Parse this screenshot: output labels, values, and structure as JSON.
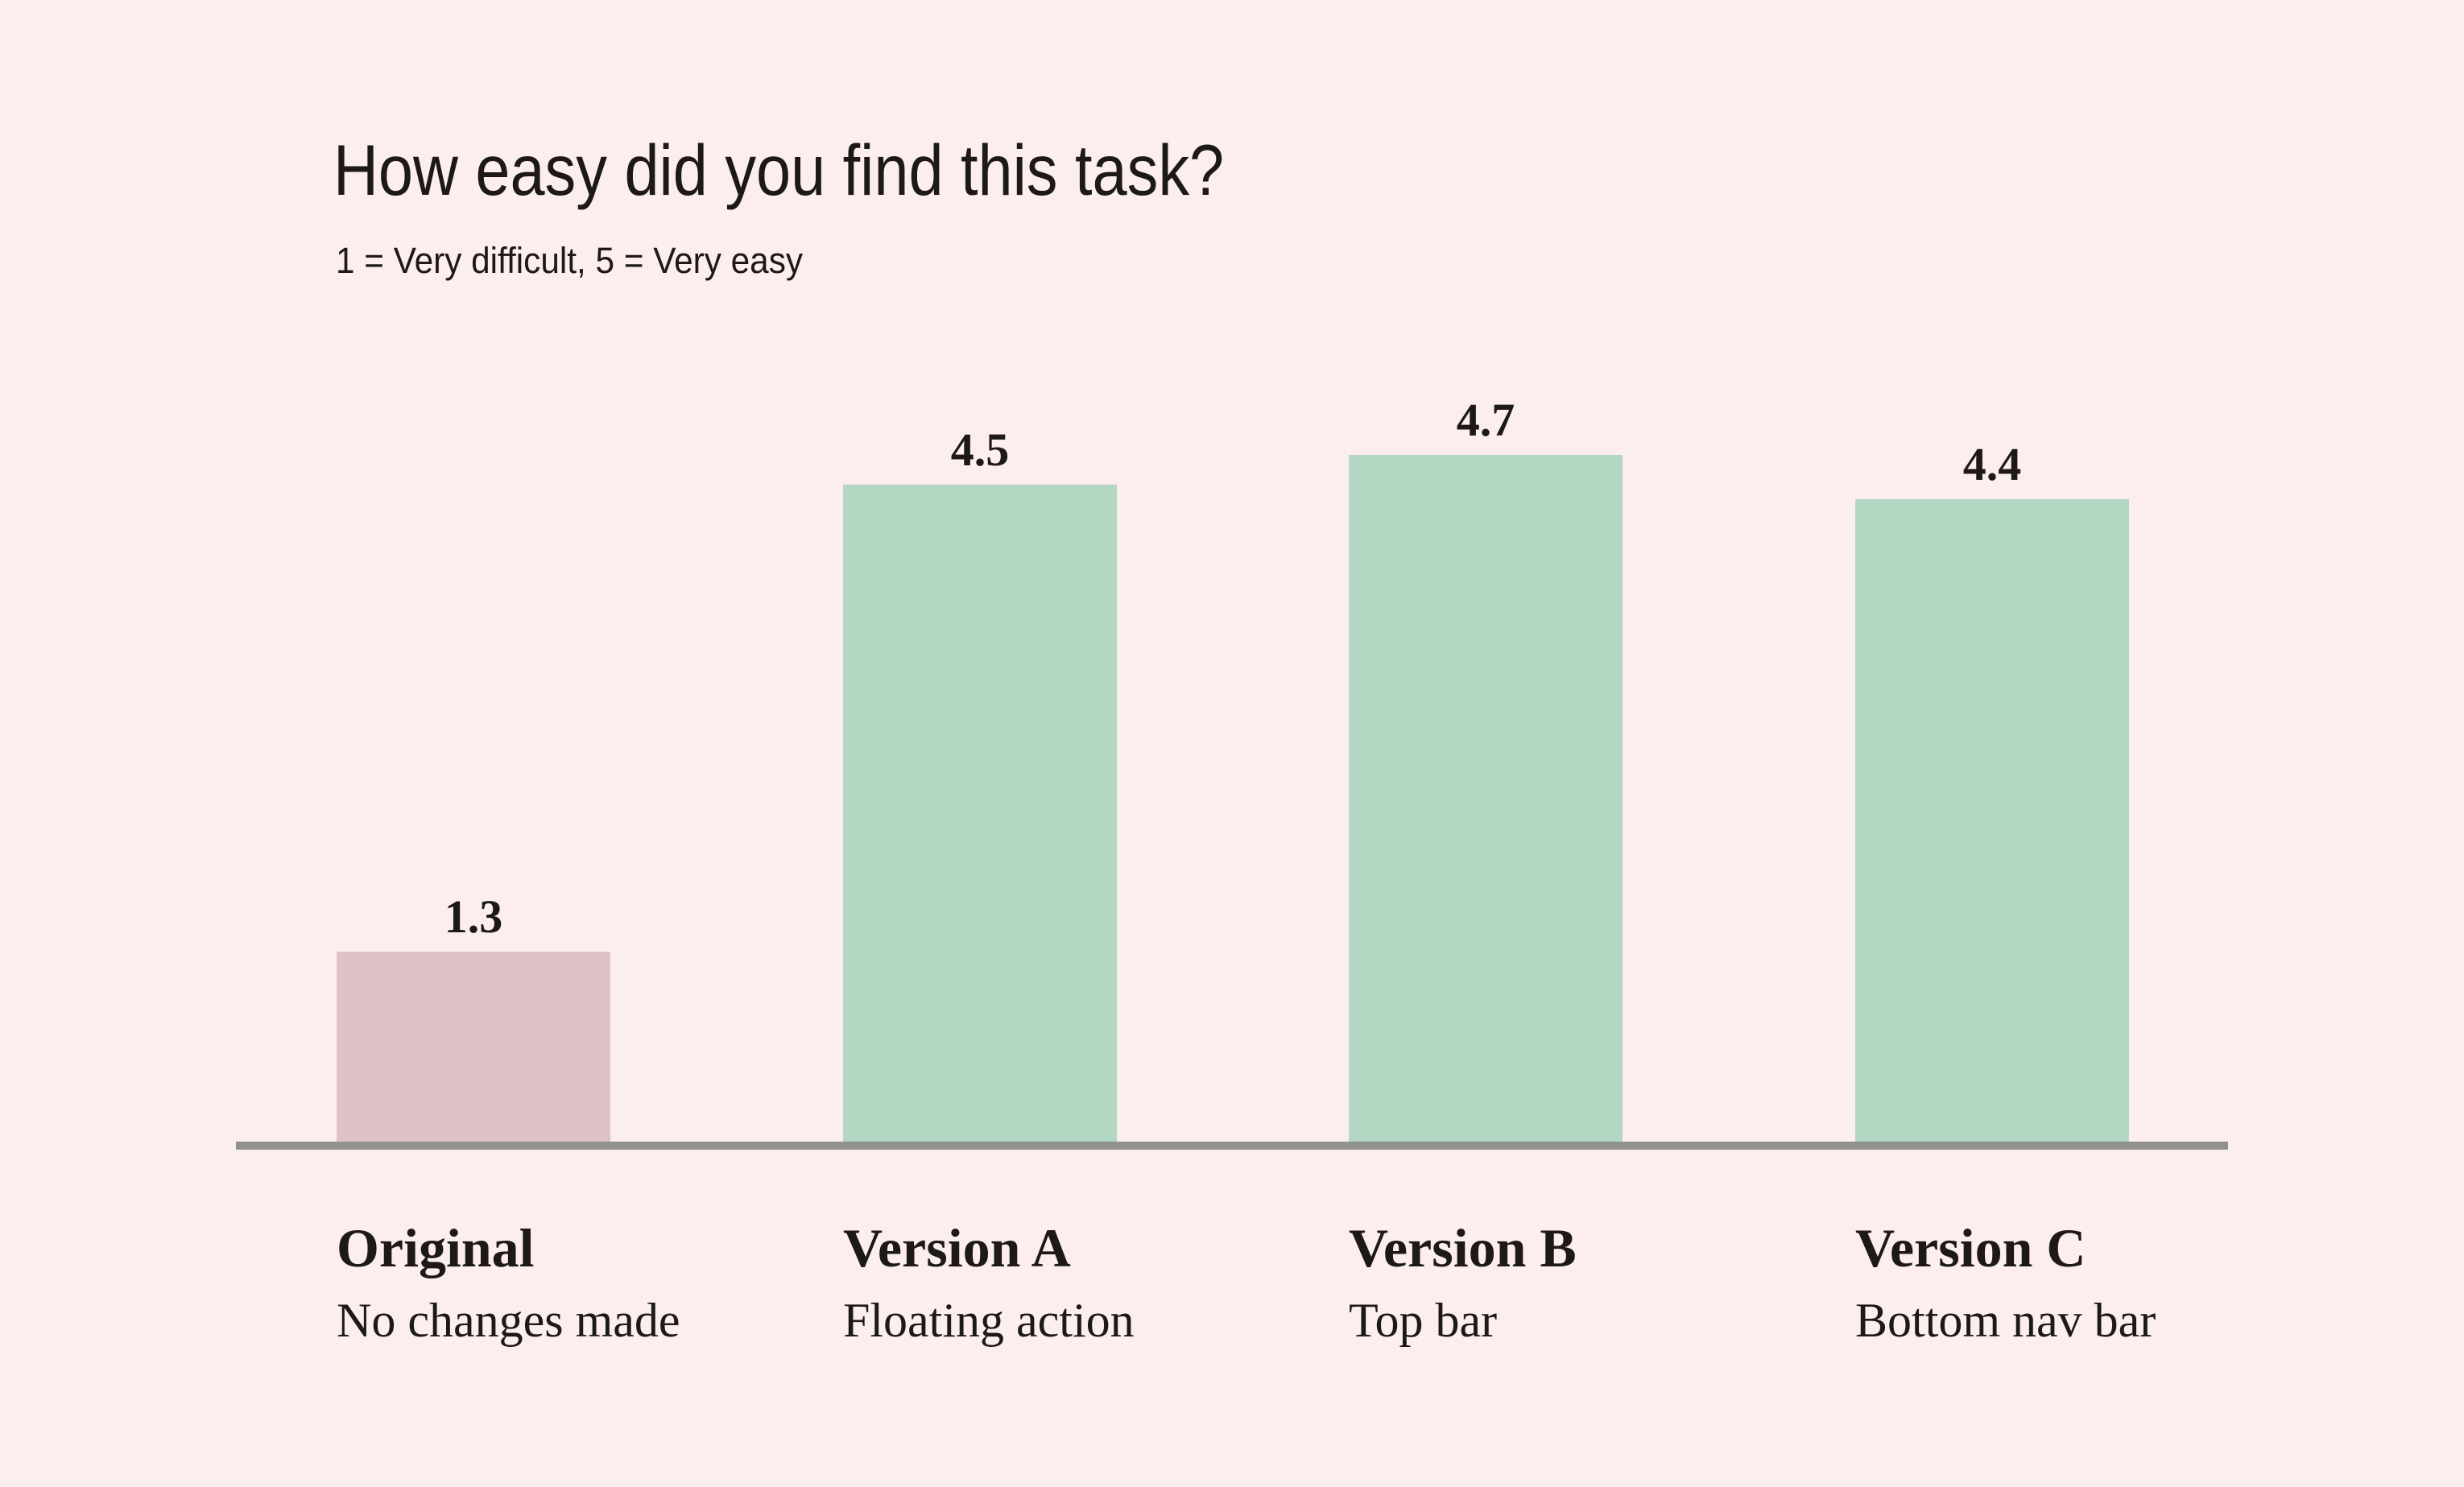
{
  "page": {
    "background_color": "#fcedef",
    "text_color": "#1c1917"
  },
  "chart_data": {
    "type": "bar",
    "title": "How easy did you find this task?",
    "subtitle": "1 = Very difficult, 5 = Very easy",
    "categories": [
      "Original",
      "Version A",
      "Version B",
      "Version C"
    ],
    "category_sublabels": [
      "No changes made",
      "Floating action",
      "Top bar",
      "Bottom nav bar"
    ],
    "values": [
      1.3,
      4.5,
      4.7,
      4.4
    ],
    "value_labels": [
      "1.3",
      "4.5",
      "4.7",
      "4.4"
    ],
    "ylim": [
      0,
      5
    ],
    "bar_colors": [
      "#e0c1c8",
      "#b3d7c2",
      "#b3d7c2",
      "#b3d7c2"
    ],
    "axis_color": "#90928e",
    "grid": false,
    "legend": false,
    "value_label_position": "above-bars",
    "category_label_alignment": "left"
  }
}
